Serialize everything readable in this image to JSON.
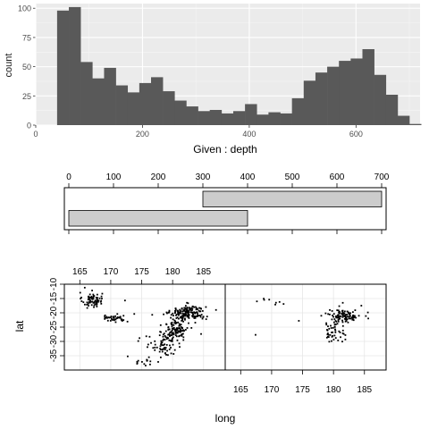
{
  "chart_data": [
    {
      "type": "bar",
      "subtype": "histogram",
      "xlabel": "",
      "ylabel": "count",
      "xlim": [
        0,
        720
      ],
      "ylim": [
        0,
        104
      ],
      "x_ticks": [
        0,
        200,
        400,
        600
      ],
      "y_ticks": [
        0,
        25,
        50,
        75,
        100
      ],
      "bin_start": 40,
      "bin_width": 22,
      "values": [
        98,
        101,
        54,
        40,
        49,
        34,
        28,
        36,
        41,
        29,
        21,
        16,
        12,
        13,
        10,
        12,
        18,
        9,
        11,
        10,
        23,
        38,
        45,
        50,
        55,
        57,
        65,
        43,
        26,
        8,
        1
      ],
      "bar_color": "#595959",
      "background": "#ebebeb",
      "grid": true
    },
    {
      "type": "bar",
      "subtype": "shingle-intervals",
      "title": "Given : depth",
      "xlim": [
        -10,
        710
      ],
      "x_ticks": [
        0,
        100,
        200,
        300,
        400,
        500,
        600,
        700
      ],
      "intervals": [
        [
          0,
          400
        ],
        [
          300,
          700
        ]
      ],
      "bar_fill": "#cccccc"
    },
    {
      "type": "scatter",
      "subtype": "coplot",
      "xlabel": "long",
      "ylabel": "lat",
      "xlim": [
        162.5,
        188.5
      ],
      "ylim": [
        -40,
        -10
      ],
      "x_ticks": [
        165,
        170,
        175,
        180,
        185
      ],
      "y_ticks": [
        -35,
        -30,
        -25,
        -20,
        -15,
        -10
      ],
      "panels": [
        {
          "clusters": [
            {
              "cx": 167.0,
              "cy": -15.5,
              "sx": 0.8,
              "sy": 1.3,
              "n": 70
            },
            {
              "cx": 170.5,
              "cy": -21.8,
              "sx": 1.2,
              "sy": 0.7,
              "n": 40
            },
            {
              "cx": 182.5,
              "cy": -20.0,
              "sx": 1.4,
              "sy": 1.3,
              "n": 170
            },
            {
              "cx": 180.5,
              "cy": -26.0,
              "sx": 1.0,
              "sy": 2.2,
              "n": 120
            },
            {
              "cx": 178.5,
              "cy": -32.0,
              "sx": 1.5,
              "sy": 2.0,
              "n": 55
            },
            {
              "cx": 175.0,
              "cy": -37.0,
              "sx": 1.6,
              "sy": 0.8,
              "n": 14
            }
          ],
          "points": [
            [
              172.3,
              -15.7
            ],
            [
              176.7,
              -20.7
            ],
            [
              173.8,
              -20.4
            ],
            [
              166.2,
              -18.3
            ],
            [
              165.8,
              -11.2
            ],
            [
              184.6,
              -27.4
            ]
          ]
        },
        {
          "clusters": [
            {
              "cx": 181.8,
              "cy": -21.0,
              "sx": 1.3,
              "sy": 1.1,
              "n": 110
            },
            {
              "cx": 180.0,
              "cy": -26.5,
              "sx": 0.9,
              "sy": 1.8,
              "n": 45
            },
            {
              "cx": 169.5,
              "cy": -16.0,
              "sx": 1.4,
              "sy": 0.6,
              "n": 8
            }
          ],
          "points": [
            [
              174.4,
              -22.8
            ],
            [
              181.5,
              -16.5
            ],
            [
              184.5,
              -17.5
            ],
            [
              167.4,
              -27.7
            ]
          ]
        }
      ]
    }
  ]
}
